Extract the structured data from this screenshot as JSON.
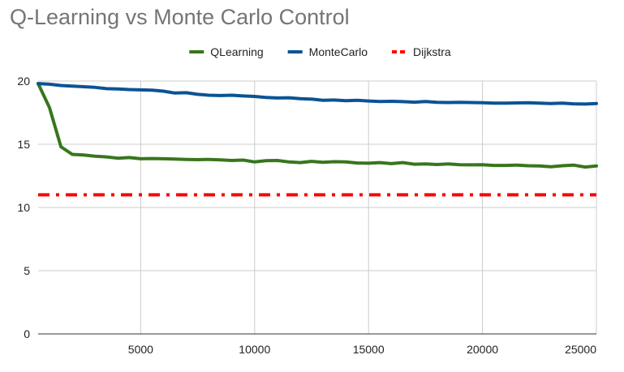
{
  "chart_data": {
    "type": "line",
    "title": "Q-Learning vs Monte Carlo Control",
    "xlabel": "",
    "ylabel": "",
    "xlim": [
      500,
      25000
    ],
    "ylim": [
      0,
      20
    ],
    "x_ticks": [
      5000,
      10000,
      15000,
      20000,
      25000
    ],
    "y_ticks": [
      0,
      5,
      10,
      15,
      20
    ],
    "grid": true,
    "legend_position": "top",
    "series": [
      {
        "name": "QLearning",
        "color": "#38761d",
        "dash": "solid",
        "x": [
          500,
          1000,
          1500,
          2000,
          2500,
          3000,
          3500,
          4000,
          4500,
          5000,
          5500,
          6000,
          6500,
          7000,
          7500,
          8000,
          8500,
          9000,
          9500,
          10000,
          10500,
          11000,
          11500,
          12000,
          12500,
          13000,
          13500,
          14000,
          14500,
          15000,
          15500,
          16000,
          16500,
          17000,
          17500,
          18000,
          18500,
          19000,
          19500,
          20000,
          20500,
          21000,
          21500,
          22000,
          22500,
          23000,
          23500,
          24000,
          24500,
          25000
        ],
        "values": [
          19.8,
          17.9,
          14.8,
          14.2,
          14.15,
          14.05,
          14.0,
          13.9,
          13.95,
          13.85,
          13.87,
          13.85,
          13.83,
          13.8,
          13.78,
          13.8,
          13.76,
          13.72,
          13.75,
          13.6,
          13.7,
          13.72,
          13.6,
          13.55,
          13.65,
          13.58,
          13.62,
          13.6,
          13.52,
          13.5,
          13.55,
          13.47,
          13.55,
          13.42,
          13.45,
          13.4,
          13.45,
          13.38,
          13.37,
          13.38,
          13.33,
          13.33,
          13.35,
          13.3,
          13.28,
          13.22,
          13.3,
          13.35,
          13.2,
          13.28
        ]
      },
      {
        "name": "MonteCarlo",
        "color": "#0b5394",
        "dash": "solid",
        "x": [
          500,
          1000,
          1500,
          2000,
          2500,
          3000,
          3500,
          4000,
          4500,
          5000,
          5500,
          6000,
          6500,
          7000,
          7500,
          8000,
          8500,
          9000,
          9500,
          10000,
          10500,
          11000,
          11500,
          12000,
          12500,
          13000,
          13500,
          14000,
          14500,
          15000,
          15500,
          16000,
          16500,
          17000,
          17500,
          18000,
          18500,
          19000,
          19500,
          20000,
          20500,
          21000,
          21500,
          22000,
          22500,
          23000,
          23500,
          24000,
          24500,
          25000
        ],
        "values": [
          19.8,
          19.75,
          19.65,
          19.6,
          19.55,
          19.5,
          19.4,
          19.38,
          19.33,
          19.3,
          19.28,
          19.2,
          19.05,
          19.08,
          18.95,
          18.88,
          18.85,
          18.88,
          18.82,
          18.78,
          18.7,
          18.66,
          18.68,
          18.6,
          18.57,
          18.48,
          18.5,
          18.45,
          18.48,
          18.42,
          18.38,
          18.4,
          18.37,
          18.33,
          18.38,
          18.32,
          18.3,
          18.32,
          18.3,
          18.28,
          18.25,
          18.25,
          18.27,
          18.28,
          18.25,
          18.22,
          18.25,
          18.2,
          18.18,
          18.22
        ]
      },
      {
        "name": "Dijkstra",
        "color": "#ff0000",
        "dash": "dash-dot",
        "x": [
          500,
          25000
        ],
        "values": [
          11,
          11
        ]
      }
    ]
  }
}
